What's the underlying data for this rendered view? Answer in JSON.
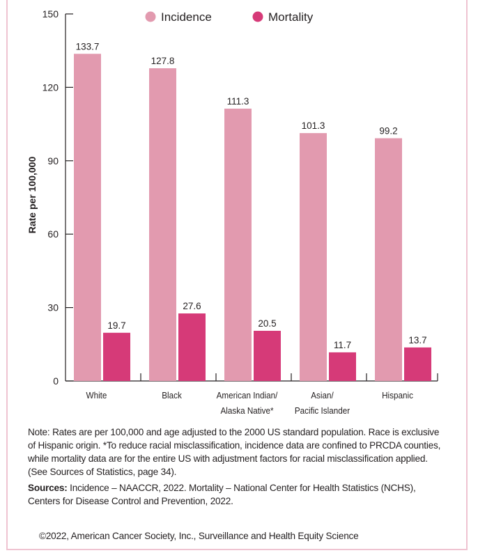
{
  "chart_data": {
    "type": "bar",
    "categories": [
      [
        "White"
      ],
      [
        "Black"
      ],
      [
        "American Indian/",
        "Alaska Native*"
      ],
      [
        "Asian/",
        "Pacific Islander"
      ],
      [
        "Hispanic"
      ]
    ],
    "series": [
      {
        "name": "Incidence",
        "color": "#e29aaf",
        "values": [
          133.7,
          127.8,
          111.3,
          101.3,
          99.2
        ]
      },
      {
        "name": "Mortality",
        "color": "#d63a78",
        "values": [
          19.7,
          27.6,
          20.5,
          11.7,
          13.7
        ]
      }
    ],
    "ylabel": "Rate per 100,000",
    "ylim": [
      0,
      150
    ],
    "yticks": [
      0,
      30,
      60,
      90,
      120,
      150
    ],
    "grid": false,
    "legend": "top-center"
  },
  "notes": {
    "note": "Note: Rates are per 100,000 and age adjusted to the 2000 US standard population. Race is exclusive of Hispanic origin. *To reduce racial misclassification, incidence data are confined to PRCDA counties, while mortality data are for the entire US with adjustment factors for racial misclassification applied. (See Sources of Statistics, page 34).",
    "sources_label": "Sources:",
    "sources_text": " Incidence – NAACCR, 2022. Mortality – National Center for Health Statistics (NCHS), Centers for Disease Control and Prevention, 2022.",
    "copyright": "©2022, American Cancer Society, Inc., Surveillance and Health Equity Science"
  }
}
